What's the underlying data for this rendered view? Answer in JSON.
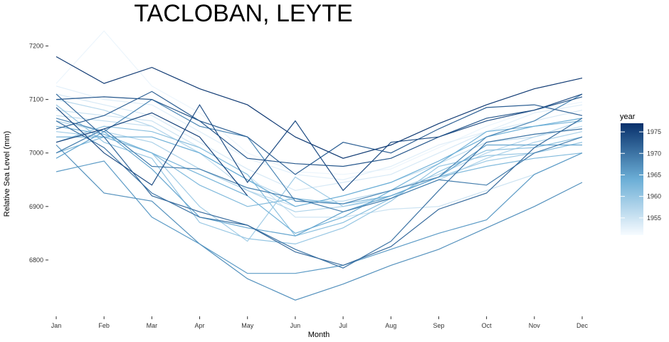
{
  "chart_data": {
    "type": "line",
    "title": "TACLOBAN, LEYTE",
    "xlabel": "Month",
    "ylabel": "Relative Sea Level (mm)",
    "categories": [
      "Jan",
      "Feb",
      "Mar",
      "Apr",
      "May",
      "Jun",
      "Jul",
      "Aug",
      "Sep",
      "Oct",
      "Nov",
      "Dec"
    ],
    "ylim": [
      6700,
      7230
    ],
    "yticks": [
      6800,
      6900,
      7000,
      7100,
      7200
    ],
    "grid": false,
    "legend": {
      "title": "year",
      "position": "right",
      "colorbar": true,
      "range": [
        1951,
        1977
      ],
      "ticks": [
        1955,
        1960,
        1965,
        1970,
        1975
      ],
      "color_low": "#f7fbff",
      "color_high": "#08306b"
    },
    "series": [
      {
        "year": 1952,
        "values": [
          7130,
          7228,
          7125,
          7075,
          7000,
          6965,
          6960,
          6970,
          7010,
          7050,
          7080,
          7095
        ]
      },
      {
        "year": 1953,
        "values": [
          7125,
          7100,
          7090,
          7040,
          6990,
          6960,
          6950,
          6975,
          7015,
          7040,
          7075,
          7090
        ]
      },
      {
        "year": 1954,
        "values": [
          7110,
          7090,
          7070,
          7020,
          6970,
          6930,
          6945,
          6960,
          7000,
          7040,
          7060,
          7080
        ]
      },
      {
        "year": 1955,
        "values": [
          7080,
          7070,
          7060,
          7010,
          6960,
          6880,
          6880,
          6895,
          6900,
          6930,
          6960,
          7000
        ]
      },
      {
        "year": 1956,
        "values": [
          7070,
          7060,
          7050,
          7000,
          6930,
          6900,
          6920,
          6945,
          6980,
          7020,
          7030,
          7050
        ]
      },
      {
        "year": 1957,
        "values": [
          7100,
          7080,
          7050,
          7000,
          6950,
          6910,
          6910,
          6930,
          6960,
          7000,
          7030,
          7060
        ]
      },
      {
        "year": 1958,
        "values": [
          7060,
          7040,
          7020,
          6970,
          6930,
          6890,
          6900,
          6915,
          6950,
          6990,
          7020,
          7040
        ]
      },
      {
        "year": 1959,
        "values": [
          7040,
          7030,
          7000,
          6900,
          6835,
          6955,
          6900,
          6920,
          6955,
          6985,
          7000,
          7020
        ]
      },
      {
        "year": 1960,
        "values": [
          7090,
          7020,
          6990,
          6870,
          6840,
          6830,
          6860,
          6910,
          6975,
          6995,
          7000,
          7020
        ]
      },
      {
        "year": 1961,
        "values": [
          7020,
          7050,
          7040,
          7010,
          6960,
          6845,
          6870,
          6915,
          6965,
          7005,
          7010,
          7030
        ]
      },
      {
        "year": 1962,
        "values": [
          7000,
          7030,
          7000,
          6940,
          6900,
          6915,
          6905,
          6920,
          6955,
          6975,
          6990,
          7000
        ]
      },
      {
        "year": 1963,
        "values": [
          7050,
          7035,
          7000,
          6960,
          6920,
          6850,
          6880,
          6930,
          6980,
          7040,
          7050,
          7060
        ]
      },
      {
        "year": 1964,
        "values": [
          7030,
          7030,
          7030,
          7000,
          6950,
          6900,
          6920,
          6945,
          6985,
          7030,
          7050,
          7065
        ]
      },
      {
        "year": 1965,
        "values": [
          6990,
          7040,
          6970,
          6880,
          6860,
          6845,
          6890,
          6920,
          6955,
          7015,
          7015,
          7015
        ]
      },
      {
        "year": 1966,
        "values": [
          6965,
          6985,
          6880,
          6830,
          6775,
          6775,
          6790,
          6820,
          6850,
          6875,
          6960,
          7000
        ]
      },
      {
        "year": 1967,
        "values": [
          7015,
          6925,
          6910,
          6830,
          6765,
          6725,
          6755,
          6790,
          6820,
          6860,
          6900,
          6945
        ]
      },
      {
        "year": 1968,
        "values": [
          7065,
          7040,
          7100,
          7050,
          7030,
          6910,
          6905,
          6930,
          6955,
          7030,
          7060,
          7110
        ]
      },
      {
        "year": 1969,
        "values": [
          7000,
          7045,
          6975,
          6970,
          6935,
          6915,
          6890,
          6915,
          6950,
          6940,
          7000,
          7030
        ]
      },
      {
        "year": 1970,
        "values": [
          7060,
          7010,
          6925,
          6880,
          6865,
          6820,
          6785,
          6835,
          6930,
          7020,
          7035,
          7045
        ]
      },
      {
        "year": 1971,
        "values": [
          7110,
          7030,
          6920,
          6890,
          6865,
          6815,
          6790,
          6825,
          6895,
          6925,
          7010,
          7065
        ]
      },
      {
        "year": 1972,
        "values": [
          7045,
          7070,
          7115,
          7060,
          7030,
          6960,
          7020,
          7000,
          7045,
          7085,
          7090,
          7070
        ]
      },
      {
        "year": 1973,
        "values": [
          7100,
          7105,
          7100,
          7060,
          6990,
          6980,
          6975,
          6990,
          7030,
          7065,
          7080,
          7105
        ]
      },
      {
        "year": 1974,
        "values": [
          7085,
          7000,
          6940,
          7090,
          6945,
          7060,
          6930,
          7020,
          7030,
          7060,
          7080,
          7110
        ]
      },
      {
        "year": 1975,
        "values": [
          7020,
          7045,
          7075,
          7030,
          6920,
          null,
          null,
          null,
          null,
          null,
          null,
          null
        ]
      },
      {
        "year": 1976,
        "values": [
          7180,
          7130,
          7160,
          7120,
          7090,
          7030,
          6990,
          7015,
          7055,
          7090,
          7120,
          7140
        ]
      }
    ]
  }
}
